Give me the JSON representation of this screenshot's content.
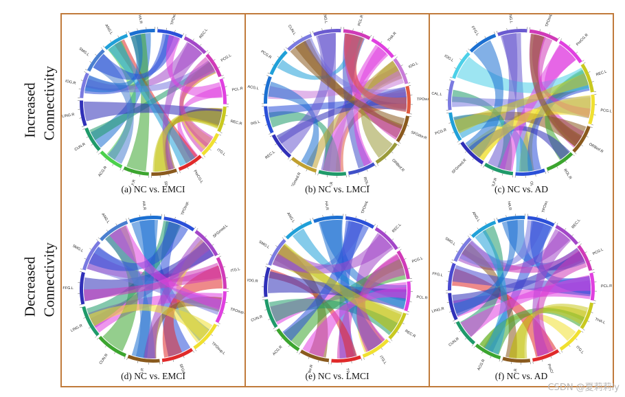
{
  "row_labels": {
    "top_line1": "Increased",
    "top_line2": "Connectivity",
    "bottom_line1": "Decreased",
    "bottom_line2": "Connectivity"
  },
  "watermark": "CSDN @夏莉莉ly",
  "panels": [
    {
      "caption": "(a) NC vs. EMCI",
      "regions": [
        "THA.R",
        "TPOsup.R",
        "REC.L",
        "PCG.L",
        "PCL.R",
        "REC.R",
        "ITG.L",
        "PreCG.L",
        "SFGdor.R",
        "OLF.R",
        "ACG.R",
        "CUN.R",
        "LING.R",
        "IOG.R",
        "SMG.L",
        "ANG.L"
      ],
      "colors": [
        "#1b6fd1",
        "#2a4fd8",
        "#a347c8",
        "#d03ab8",
        "#e040e0",
        "#c9c920",
        "#f0e030",
        "#e02a2a",
        "#8a5a1e",
        "#3ca52f",
        "#4cd04c",
        "#1f9a6a",
        "#3030b8",
        "#7a7ae0",
        "#4a7fd0",
        "#20a0d8"
      ]
    },
    {
      "caption": "(b) NC vs. LMCI",
      "regions": [
        "ANG.L",
        "PCL.R",
        "THA.R",
        "IOG.L",
        "TPOsup.R",
        "SFGdor.R",
        "ORBinf.R",
        "ROL.R",
        "OLF.R",
        "SFGmed.R",
        "REC.L",
        "INS.L",
        "ACG.L",
        "PCG.R",
        "CUN.L"
      ],
      "colors": [
        "#6a5ad0",
        "#d03ab8",
        "#e040e0",
        "#c87ad8",
        "#e05a40",
        "#8a5a1e",
        "#9a9a3a",
        "#4050c8",
        "#1f9a6a",
        "#c0a030",
        "#3030b8",
        "#2a4fd8",
        "#1b6fd1",
        "#20a0d8",
        "#7a7ae0"
      ]
    },
    {
      "caption": "(c) NC vs. AD",
      "regions": [
        "ANG.L",
        "TPOsup.L",
        "PreCG.R",
        "REC.L",
        "PCG.L",
        "ORBinf.R",
        "ROL.R",
        "OLF.L",
        "OLF.R",
        "SFGmed.R",
        "PCG.R",
        "CAL.L",
        "IOG.L",
        "FFG.L"
      ],
      "colors": [
        "#6a5ad0",
        "#d03ab8",
        "#e040e0",
        "#c9c920",
        "#f0e030",
        "#8a5a1e",
        "#3ca52f",
        "#2a4fd8",
        "#1f9a6a",
        "#3030b8",
        "#20a0d8",
        "#7a7ae0",
        "#4cd0e8",
        "#1b6fd1"
      ]
    },
    {
      "caption": "(d) NC vs. EMCI",
      "regions": [
        "THA.R",
        "TPOsup.R",
        "SFGmed.L",
        "ITG.L",
        "TPOsup.L",
        "TPOsup.L",
        "SFGdor.R",
        "ACG.R",
        "CUN.R",
        "LING.R",
        "FFG.L",
        "SMG.L",
        "ANG.L"
      ],
      "colors": [
        "#1b6fd1",
        "#2a4fd8",
        "#a347c8",
        "#d03ab8",
        "#e040e0",
        "#f0e030",
        "#e02a2a",
        "#8a5a1e",
        "#3ca52f",
        "#1f9a6a",
        "#3030b8",
        "#7a7ae0",
        "#4a7fd0"
      ]
    },
    {
      "caption": "(e) NC vs. LMCI",
      "regions": [
        "THA.R",
        "TPOsup.R",
        "REC.L",
        "PCG.L",
        "PCL.R",
        "REC.R",
        "ITG.L",
        "TPOsup.L",
        "SFGdor.R",
        "ACG.R",
        "CUN.R",
        "IOG.R",
        "SMG.L",
        "ANG.L"
      ],
      "colors": [
        "#1b6fd1",
        "#2a4fd8",
        "#a347c8",
        "#d03ab8",
        "#e040e0",
        "#c9c920",
        "#f0e030",
        "#e02a2a",
        "#8a5a1e",
        "#3ca52f",
        "#1f9a6a",
        "#3030b8",
        "#7a7ae0",
        "#20a0d8"
      ]
    },
    {
      "caption": "(f) NC vs. AD",
      "regions": [
        "THA.R",
        "TPOsup.R",
        "REC.L",
        "PCG.L",
        "PCL.R",
        "THA.L",
        "ITG.L",
        "PreCG.L",
        "SFGdor.R",
        "ACG.R",
        "CUN.R",
        "LING.R",
        "FFG.L",
        "SMG.L",
        "ANG.L"
      ],
      "colors": [
        "#1b6fd1",
        "#2a4fd8",
        "#a347c8",
        "#d03ab8",
        "#e040e0",
        "#c9c920",
        "#f0e030",
        "#e02a2a",
        "#8a5a1e",
        "#3ca52f",
        "#1f9a6a",
        "#3030b8",
        "#4a4ad0",
        "#7a7ae0",
        "#20a0d8"
      ]
    }
  ]
}
